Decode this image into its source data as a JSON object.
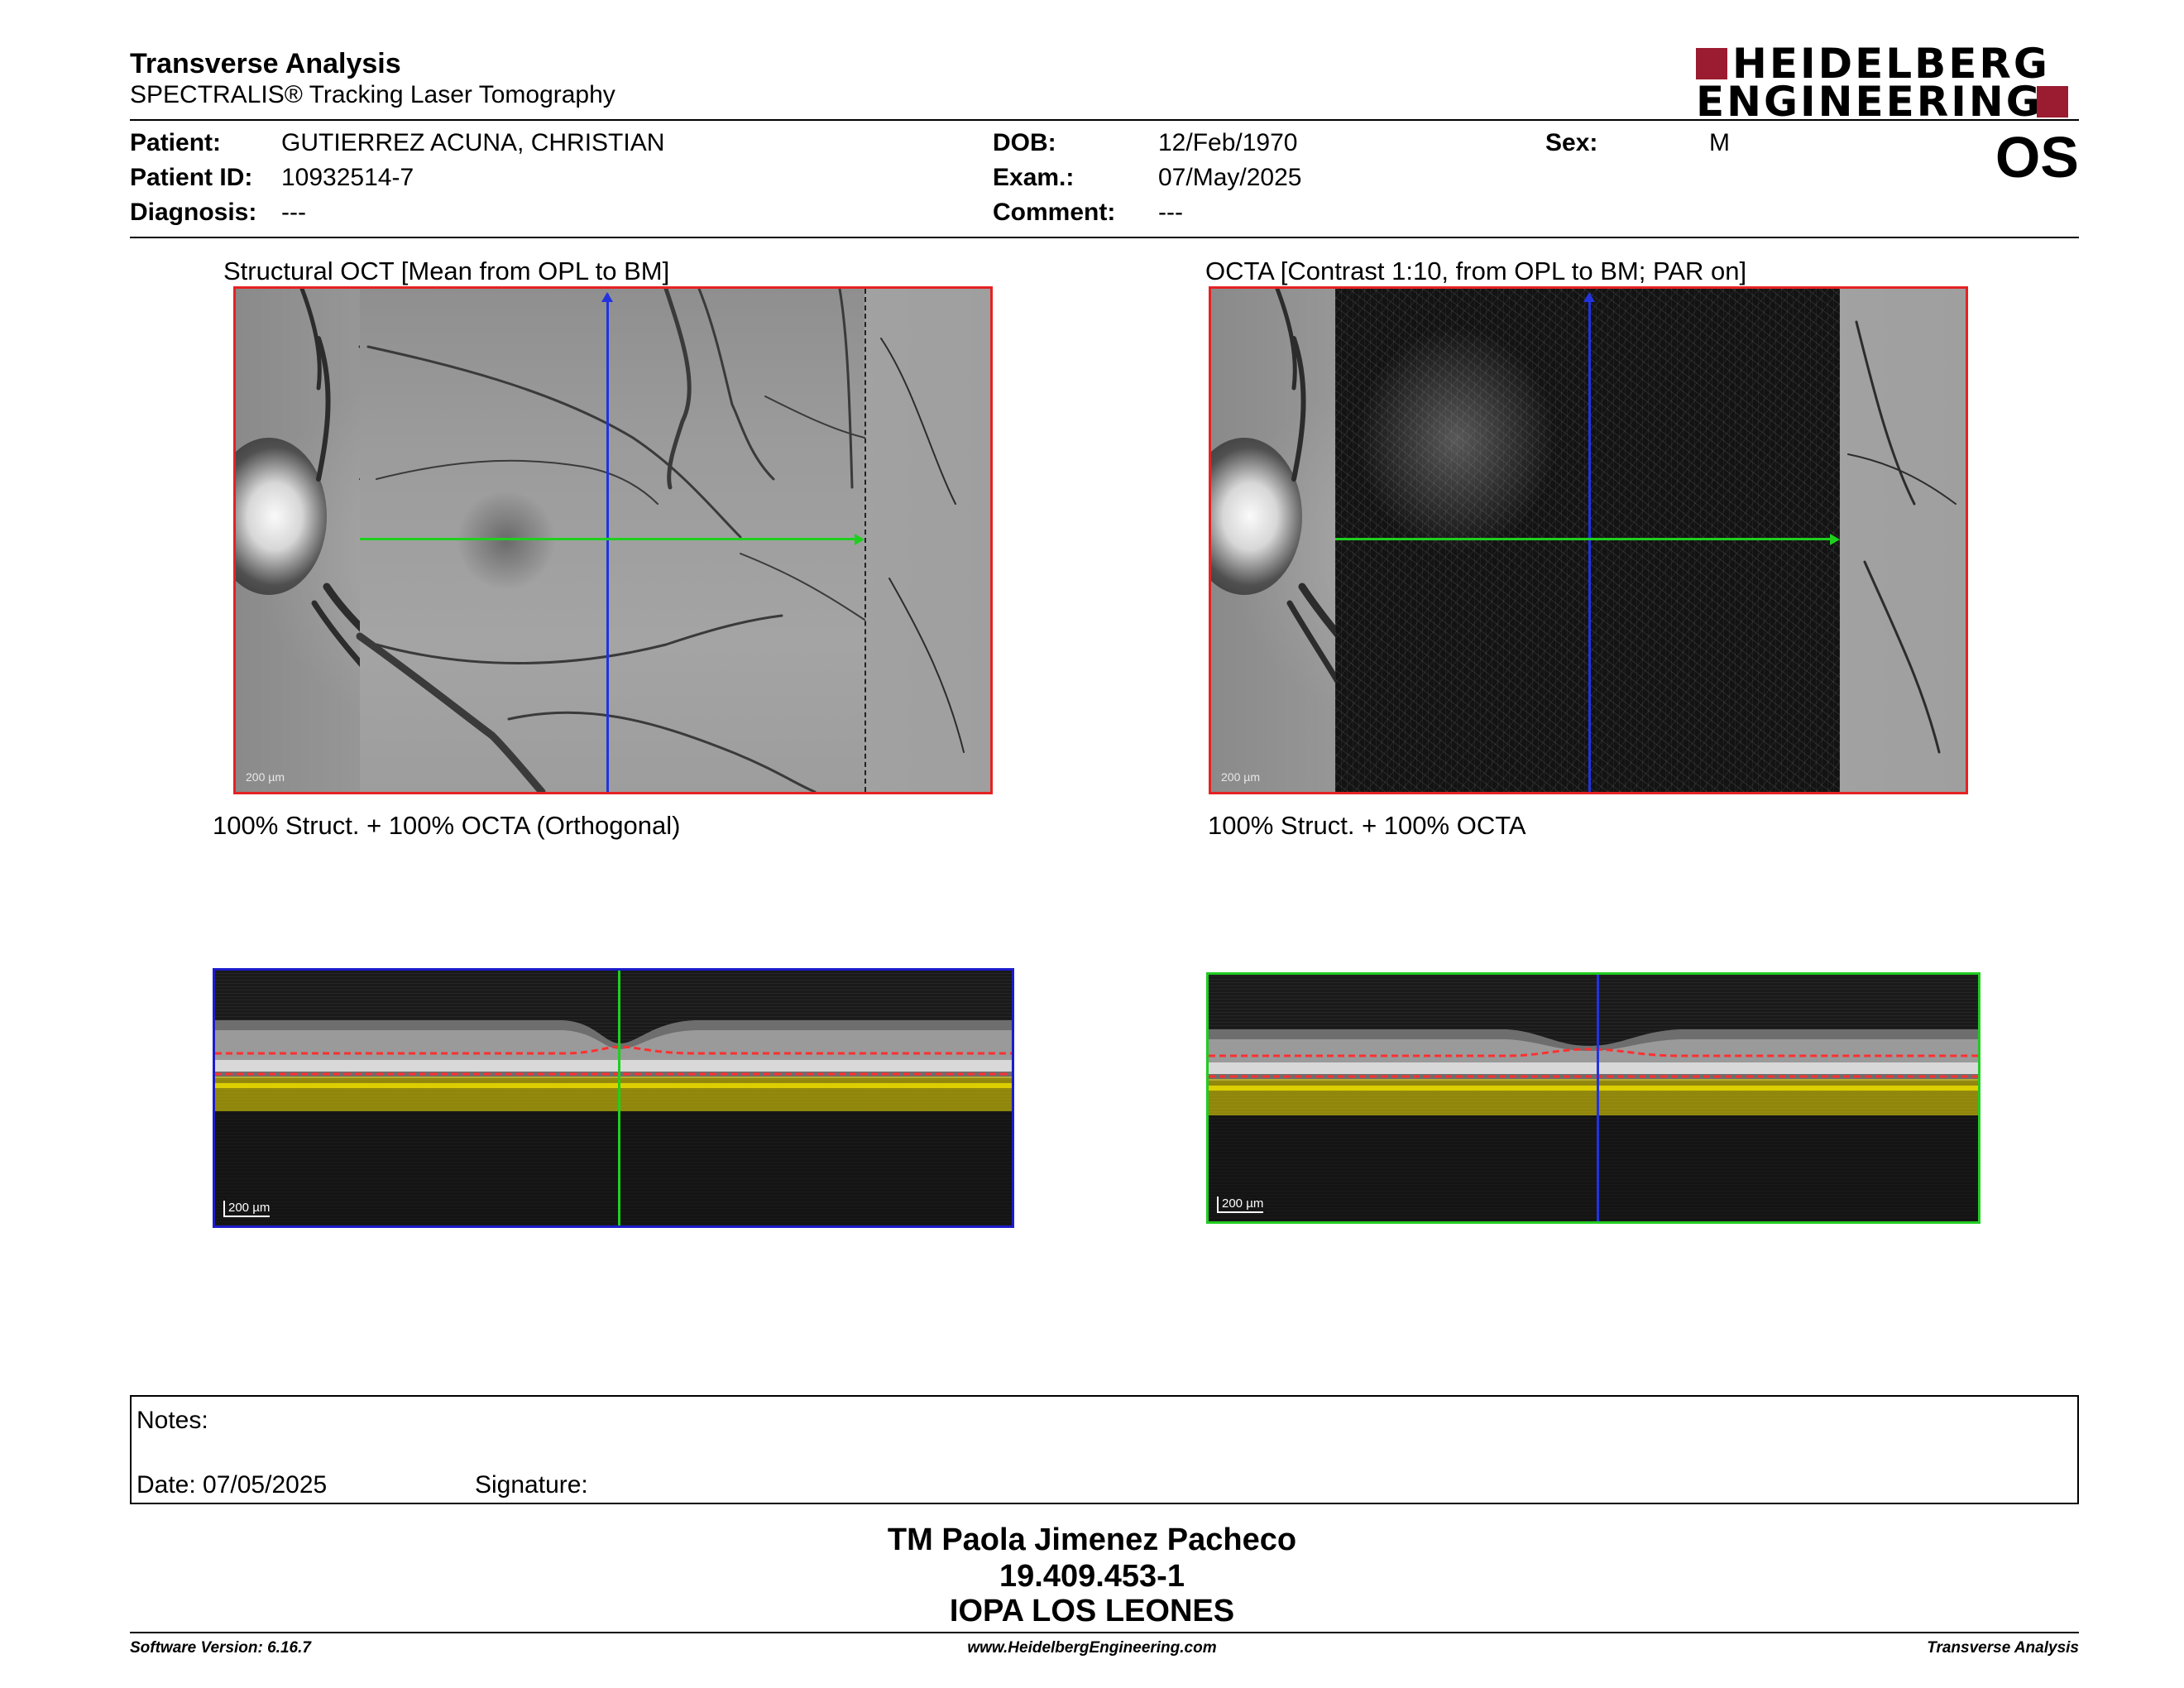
{
  "header": {
    "title": "Transverse Analysis",
    "subtitle": "SPECTRALIS® Tracking Laser Tomography",
    "logo_line1": "HEIDELBERG",
    "logo_line2": "ENGINEERING",
    "brand_color": "#9b1b30"
  },
  "patient": {
    "patient_label": "Patient:",
    "patient_value": "GUTIERREZ ACUNA, CHRISTIAN",
    "id_label": "Patient ID:",
    "id_value": "10932514-7",
    "diagnosis_label": "Diagnosis:",
    "diagnosis_value": "---",
    "dob_label": "DOB:",
    "dob_value": "12/Feb/1970",
    "exam_label": "Exam.:",
    "exam_value": "07/May/2025",
    "comment_label": "Comment:",
    "comment_value": "---",
    "sex_label": "Sex:",
    "sex_value": "M",
    "eye": "OS"
  },
  "images": {
    "struct_caption": "Structural OCT [Mean from OPL to BM]",
    "octa_caption": "OCTA [Contrast 1:10, from OPL to BM; PAR on]",
    "overlay_orthogonal_caption": "100% Struct. + 100% OCTA (Orthogonal)",
    "overlay_caption": "100% Struct. + 100% OCTA",
    "fundus_scale_label": "200 µm",
    "bscan_scale_label": "200 µm",
    "frame_red": "#e52222",
    "frame_blue": "#1c1ccc",
    "frame_green": "#22cc22",
    "line_green": "#1ed01e",
    "line_blue": "#2233dd",
    "segmentation_red": "#ff3030",
    "flow_yellow": "#f0e000"
  },
  "notes": {
    "notes_label": "Notes:",
    "date_label": "Date: 07/05/2025",
    "signature_label": "Signature:"
  },
  "signatory": {
    "name": "TM Paola Jimenez Pacheco",
    "id": "19.409.453-1",
    "institution": "IOPA LOS LEONES"
  },
  "footer": {
    "software": "Software Version: 6.16.7",
    "website": "www.HeidelbergEngineering.com",
    "report_name": "Transverse Analysis"
  }
}
